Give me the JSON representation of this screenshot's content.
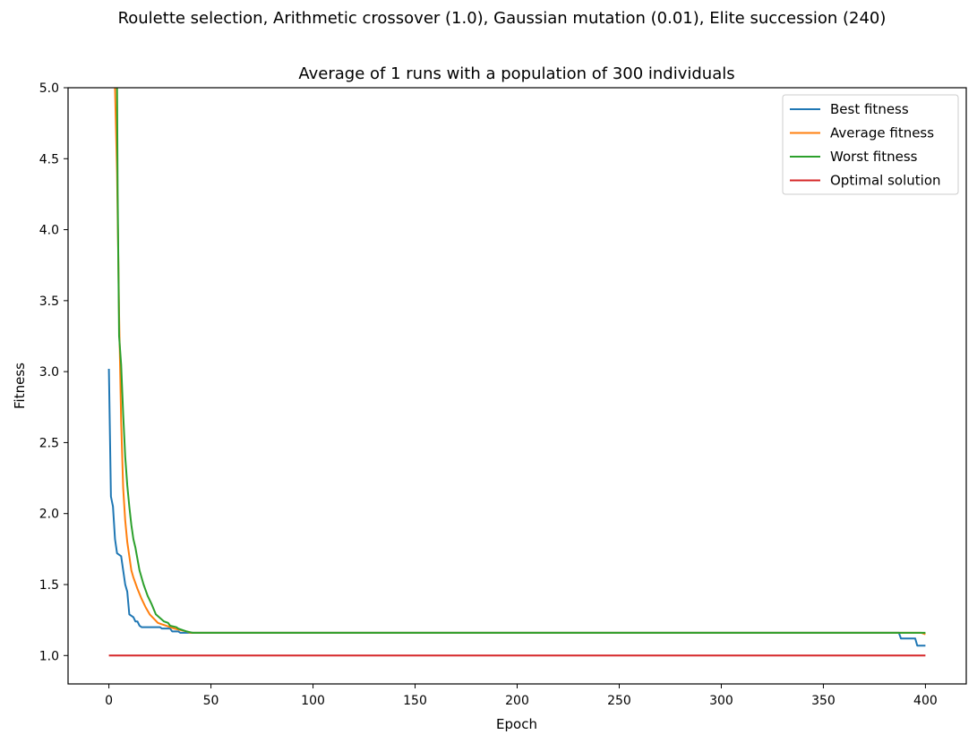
{
  "suptitle": "Roulette selection, Arithmetic crossover (1.0), Gaussian mutation (0.01), Elite succession (240)",
  "chart_data": {
    "type": "line",
    "title": "Average of 1 runs with a population of 300 individuals",
    "xlabel": "Epoch",
    "ylabel": "Fitness",
    "xlim": [
      -20,
      420
    ],
    "ylim": [
      0.8,
      5.0
    ],
    "xticks": [
      0,
      50,
      100,
      150,
      200,
      250,
      300,
      350,
      400
    ],
    "yticks": [
      1.0,
      1.5,
      2.0,
      2.5,
      3.0,
      3.5,
      4.0,
      4.5,
      5.0
    ],
    "xtick_labels": [
      "0",
      "50",
      "100",
      "150",
      "200",
      "250",
      "300",
      "350",
      "400"
    ],
    "ytick_labels": [
      "1.0",
      "1.5",
      "2.0",
      "2.5",
      "3.0",
      "3.5",
      "4.0",
      "4.5",
      "5.0"
    ],
    "grid": false,
    "legend_position": "top-right",
    "series": [
      {
        "name": "Best fitness",
        "color": "#1f77b4",
        "x": [
          0,
          1,
          2,
          3,
          4,
          6,
          7,
          8,
          9,
          10,
          12,
          13,
          14,
          15,
          16,
          25,
          26,
          30,
          31,
          34,
          35,
          40,
          41,
          387,
          388,
          395,
          396,
          400
        ],
        "y": [
          3.02,
          2.12,
          2.05,
          1.82,
          1.72,
          1.7,
          1.6,
          1.5,
          1.45,
          1.29,
          1.27,
          1.24,
          1.24,
          1.21,
          1.2,
          1.2,
          1.19,
          1.19,
          1.17,
          1.17,
          1.16,
          1.16,
          1.16,
          1.16,
          1.12,
          1.12,
          1.07,
          1.07
        ]
      },
      {
        "name": "Average fitness",
        "color": "#ff7f0e",
        "x": [
          3,
          4,
          5,
          6,
          7,
          8,
          9,
          10,
          11,
          12,
          14,
          16,
          18,
          20,
          22,
          24,
          26,
          28,
          30,
          32,
          35,
          38,
          40,
          42,
          100,
          200,
          300,
          398,
          400
        ],
        "y": [
          5.0,
          4.4,
          3.4,
          2.65,
          2.18,
          1.95,
          1.8,
          1.7,
          1.6,
          1.55,
          1.47,
          1.4,
          1.34,
          1.29,
          1.26,
          1.23,
          1.22,
          1.21,
          1.2,
          1.19,
          1.18,
          1.17,
          1.16,
          1.16,
          1.16,
          1.16,
          1.16,
          1.16,
          1.15
        ]
      },
      {
        "name": "Worst fitness",
        "color": "#2ca02c",
        "x": [
          4,
          4.3,
          5,
          6,
          7,
          8,
          9,
          10,
          11,
          12,
          13,
          15,
          17,
          19,
          21,
          23,
          27,
          29,
          30,
          33,
          34,
          38,
          41,
          100,
          200,
          300,
          400
        ],
        "y": [
          5.0,
          4.25,
          3.25,
          3.05,
          2.7,
          2.4,
          2.2,
          2.05,
          1.92,
          1.82,
          1.76,
          1.6,
          1.5,
          1.42,
          1.36,
          1.29,
          1.24,
          1.23,
          1.21,
          1.2,
          1.19,
          1.17,
          1.16,
          1.16,
          1.16,
          1.16,
          1.16
        ]
      },
      {
        "name": "Optimal solution",
        "color": "#d62728",
        "x": [
          0,
          400
        ],
        "y": [
          1.0,
          1.0
        ]
      }
    ]
  }
}
